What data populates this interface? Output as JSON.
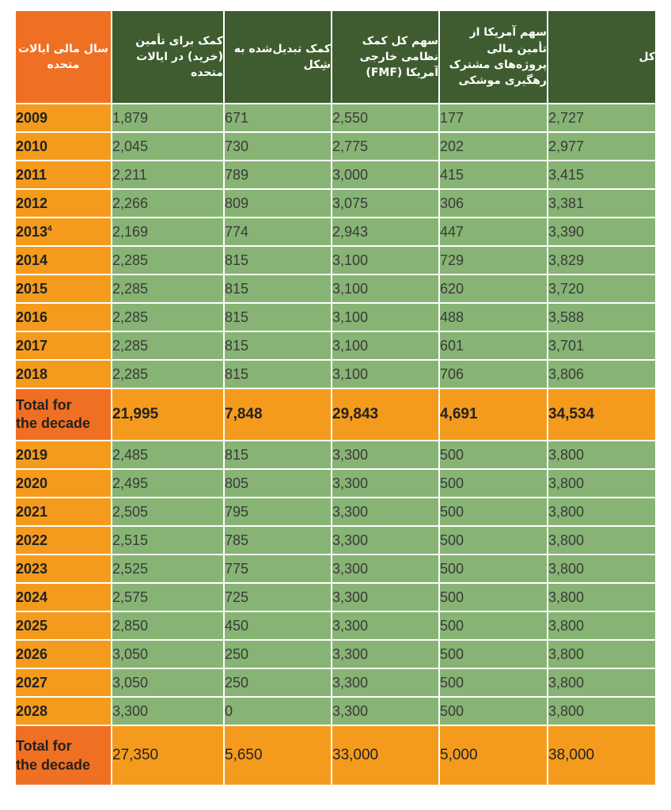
{
  "headers": [
    "سال مالی ایالات متحده",
    "کمک برای تأمین (خرید) در ایالات متحده",
    "کمک تبدیل‌شده به شِکل",
    "سهم کل کمک نظامی خارجی آمریکا (FMF)",
    "سهم آمریکا از تأمین مالی پروژه‌های مشترک رهگیری موشکی",
    "کل"
  ],
  "rows_a": [
    {
      "year": "2009",
      "sup": "",
      "values": [
        "1,879",
        "671",
        "2,550",
        "177",
        "2,727"
      ]
    },
    {
      "year": "2010",
      "sup": "",
      "values": [
        "2,045",
        "730",
        "2,775",
        "202",
        "2,977"
      ]
    },
    {
      "year": "2011",
      "sup": "",
      "values": [
        "2,211",
        "789",
        "3,000",
        "415",
        "3,415"
      ]
    },
    {
      "year": "2012",
      "sup": "",
      "values": [
        "2,266",
        "809",
        "3,075",
        "306",
        "3,381"
      ]
    },
    {
      "year": "2013",
      "sup": "4",
      "values": [
        "2,169",
        "774",
        "2,943",
        "447",
        "3,390"
      ]
    },
    {
      "year": "2014",
      "sup": "",
      "values": [
        "2,285",
        "815",
        "3,100",
        "729",
        "3,829"
      ]
    },
    {
      "year": "2015",
      "sup": "",
      "values": [
        "2,285",
        "815",
        "3,100",
        "620",
        "3,720"
      ]
    },
    {
      "year": "2016",
      "sup": "",
      "values": [
        "2,285",
        "815",
        "3,100",
        "488",
        "3,588"
      ]
    },
    {
      "year": "2017",
      "sup": "",
      "values": [
        "2,285",
        "815",
        "3,100",
        "601",
        "3,701"
      ]
    },
    {
      "year": "2018",
      "sup": "",
      "values": [
        "2,285",
        "815",
        "3,100",
        "706",
        "3,806"
      ]
    }
  ],
  "total_a": {
    "label_line1": "Total for",
    "label_line2": "the decade",
    "values": [
      "21,995",
      "7,848",
      "29,843",
      "4,691",
      "34,534"
    ]
  },
  "rows_b": [
    {
      "year": "2019",
      "sup": "",
      "values": [
        "2,485",
        "815",
        "3,300",
        "500",
        "3,800"
      ]
    },
    {
      "year": "2020",
      "sup": "",
      "values": [
        "2,495",
        "805",
        "3,300",
        "500",
        "3,800"
      ]
    },
    {
      "year": "2021",
      "sup": "",
      "values": [
        "2,505",
        "795",
        "3,300",
        "500",
        "3,800"
      ]
    },
    {
      "year": "2022",
      "sup": "",
      "values": [
        "2,515",
        "785",
        "3,300",
        "500",
        "3,800"
      ]
    },
    {
      "year": "2023",
      "sup": "",
      "values": [
        "2,525",
        "775",
        "3,300",
        "500",
        "3,800"
      ]
    },
    {
      "year": "2024",
      "sup": "",
      "values": [
        "2,575",
        "725",
        "3,300",
        "500",
        "3,800"
      ]
    },
    {
      "year": "2025",
      "sup": "",
      "values": [
        "2,850",
        "450",
        "3,300",
        "500",
        "3,800"
      ]
    },
    {
      "year": "2026",
      "sup": "",
      "values": [
        "3,050",
        "250",
        "3,300",
        "500",
        "3,800"
      ]
    },
    {
      "year": "2027",
      "sup": "",
      "values": [
        "3,050",
        "250",
        "3,300",
        "500",
        "3,800"
      ]
    },
    {
      "year": "2028",
      "sup": "",
      "values": [
        "3,300",
        "0",
        "3,300",
        "500",
        "3,800"
      ]
    }
  ],
  "total_b": {
    "label_line1": "Total for",
    "label_line2": "the decade",
    "values": [
      "27,350",
      "5,650",
      "33,000",
      "5,000",
      "38,000"
    ]
  },
  "colors": {
    "header_green": "#3e5c30",
    "year_orange": "#f49b1d",
    "header_orange": "#f07023",
    "cell_green": "#87b474"
  }
}
